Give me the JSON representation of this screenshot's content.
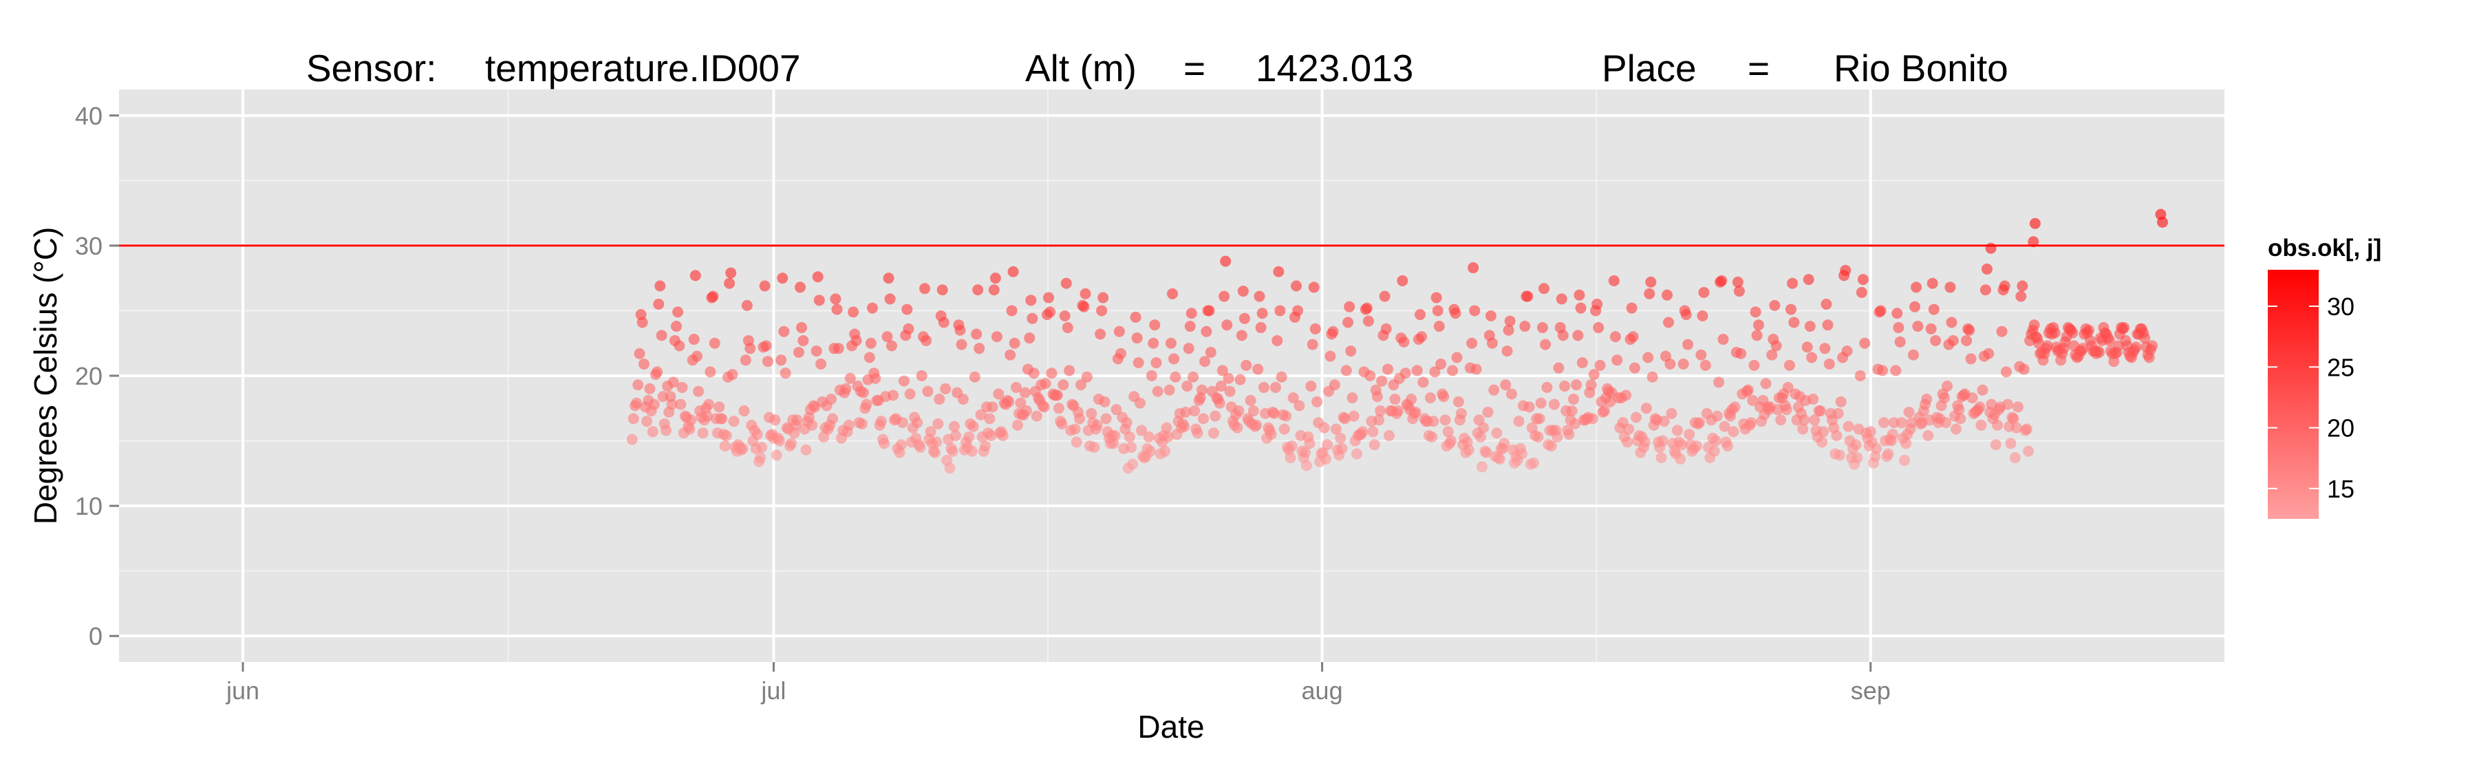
{
  "chart_data": {
    "type": "scatter",
    "title_parts": {
      "sensor_label": "Sensor:",
      "sensor_value": "temperature.ID007",
      "alt_label": "Alt (m)",
      "alt_eq": "=",
      "alt_value": "1423.013",
      "place_label": "Place",
      "place_eq": "=",
      "place_value": "Rio Bonito"
    },
    "xlabel": "Date",
    "ylabel": "Degrees Celsius (°C)",
    "x_ticks": [
      {
        "label": "jun",
        "day": 0
      },
      {
        "label": "jul",
        "day": 30
      },
      {
        "label": "aug",
        "day": 61
      },
      {
        "label": "sep",
        "day": 92
      }
    ],
    "xlim_days": [
      -7,
      112
    ],
    "ylim": [
      -2,
      42
    ],
    "y_ticks": [
      0,
      10,
      20,
      30,
      40
    ],
    "reference_line": {
      "y": 30,
      "color": "#ff0000"
    },
    "point_color_scale": {
      "low": "#ffa0a0",
      "high": "#ff0000",
      "min": 12,
      "max": 33
    },
    "legend": {
      "title": "obs.ok[, j]",
      "ticks": [
        15,
        20,
        25,
        30
      ],
      "range": [
        12.5,
        33
      ],
      "placement": "right"
    },
    "grid": true,
    "background": "#e5e5e5",
    "data_range_days": [
      22,
      108
    ],
    "values_note": "",
    "points": []
  }
}
